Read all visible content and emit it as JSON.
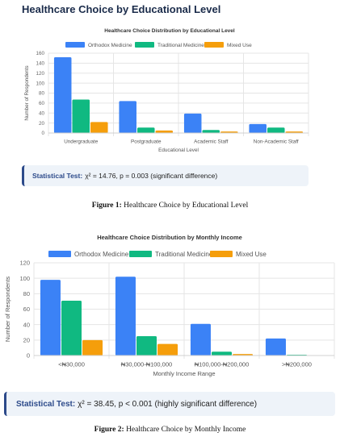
{
  "page": {
    "heading": "Healthcare Choice by Educational Level"
  },
  "chart_data": [
    {
      "type": "bar",
      "title": "Healthcare Choice Distribution by Educational Level",
      "xlabel": "Educational Level",
      "ylabel": "Number of Respondents",
      "ylim": [
        0,
        160
      ],
      "yticks": [
        0,
        20,
        40,
        60,
        80,
        100,
        120,
        140,
        160
      ],
      "categories": [
        "Undergraduate",
        "Postgraduate",
        "Academic Staff",
        "Non-Academic Staff"
      ],
      "series": [
        {
          "name": "Orthodox Medicine",
          "color": "#3b82f6",
          "values": [
            152,
            64,
            39,
            18
          ]
        },
        {
          "name": "Traditional Medicine",
          "color": "#10b981",
          "values": [
            67,
            11,
            6,
            11
          ]
        },
        {
          "name": "Mixed Use",
          "color": "#f59e0b",
          "values": [
            22,
            5,
            3,
            3
          ]
        }
      ],
      "legend": "top-center",
      "grid": true
    },
    {
      "type": "bar",
      "title": "Healthcare Choice Distribution by Monthly Income",
      "xlabel": "Monthly Income Range",
      "ylabel": "Number of Respondents",
      "ylim": [
        0,
        120
      ],
      "yticks": [
        0,
        20,
        40,
        60,
        80,
        100,
        120
      ],
      "categories": [
        "<₦30,000",
        "₦30,000-₦100,000",
        "₦100,000-₦200,000",
        ">₦200,000"
      ],
      "series": [
        {
          "name": "Orthodox Medicine",
          "color": "#3b82f6",
          "values": [
            98,
            102,
            41,
            22
          ]
        },
        {
          "name": "Traditional Medicine",
          "color": "#10b981",
          "values": [
            71,
            25,
            5,
            1
          ]
        },
        {
          "name": "Mixed Use",
          "color": "#f59e0b",
          "values": [
            20,
            15,
            2,
            0
          ]
        }
      ],
      "legend": "top-center",
      "grid": true
    }
  ],
  "stats": [
    {
      "label": "Statistical Test:",
      "text": "χ² = 14.76, p = 0.003 (significant difference)"
    },
    {
      "label": "Statistical Test:",
      "text": "χ² = 38.45, p < 0.001 (highly significant difference)"
    }
  ],
  "captions": [
    {
      "label": "Figure 1:",
      "text": "Healthcare Choice by Educational Level"
    },
    {
      "label": "Figure 2:",
      "text": "Healthcare Choice by Monthly Income"
    }
  ]
}
